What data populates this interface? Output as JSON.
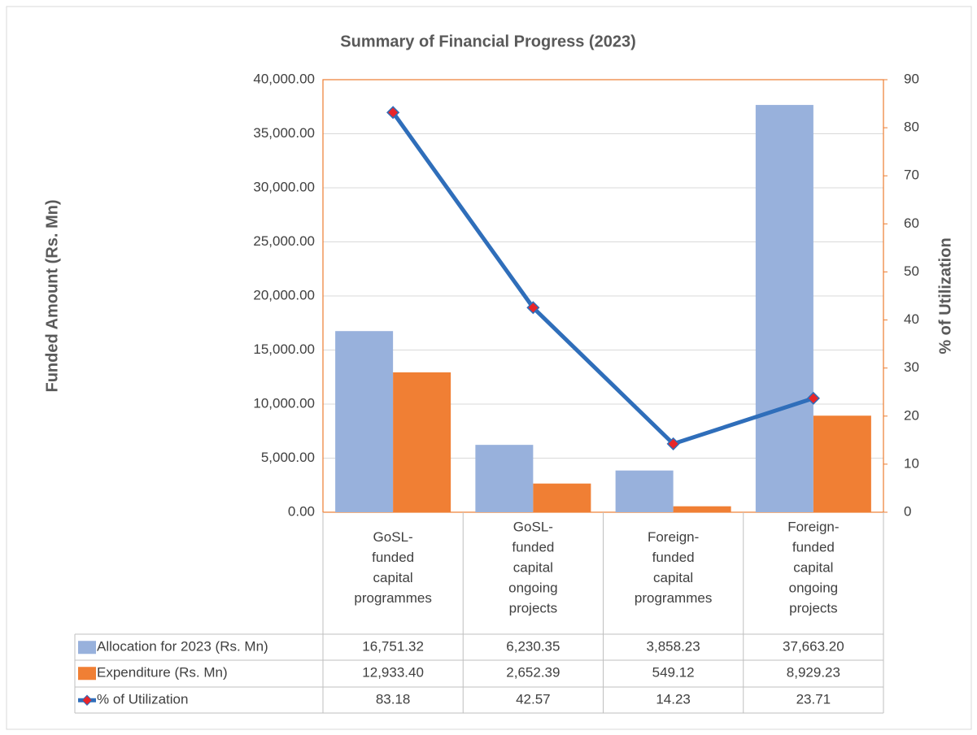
{
  "chart_data": {
    "type": "bar",
    "title": "Summary of Financial Progress (2023)",
    "ylabel": "Funded Amount  (Rs. Mn)",
    "y2label": "% of Utilization",
    "categories": [
      "GoSL-funded capital programmes",
      "GoSL-funded capital ongoing projects",
      "Foreign-funded capital programmes",
      "Foreign-funded capital ongoing projects"
    ],
    "series": [
      {
        "name": "Allocation for 2023 (Rs. Mn)",
        "color": "#98b1dc",
        "values": [
          16751.32,
          6230.35,
          3858.23,
          37663.2
        ],
        "value_labels": [
          "16,751.32",
          "6,230.35",
          "3,858.23",
          "37,663.20"
        ]
      },
      {
        "name": "Expenditure (Rs. Mn)",
        "color": "#f07f34",
        "values": [
          12933.4,
          2652.39,
          549.12,
          8929.23
        ],
        "value_labels": [
          "12,933.40",
          "2,652.39",
          "549.12",
          "8,929.23"
        ]
      },
      {
        "name": "% of Utilization",
        "type": "line",
        "axis": "y2",
        "color": "#2f6eba",
        "marker_color": "#e8262a",
        "values": [
          83.18,
          42.57,
          14.23,
          23.71
        ]
      }
    ],
    "ylim": [
      0,
      40000
    ],
    "yticks": [
      {
        "value": 0,
        "label": "0.00"
      },
      {
        "value": 5000,
        "label": "5,000.00"
      },
      {
        "value": 10000,
        "label": "10,000.00"
      },
      {
        "value": 15000,
        "label": "15,000.00"
      },
      {
        "value": 20000,
        "label": "20,000.00"
      },
      {
        "value": 25000,
        "label": "25,000.00"
      },
      {
        "value": 30000,
        "label": "30,000.00"
      },
      {
        "value": 35000,
        "label": "35,000.00"
      },
      {
        "value": 40000,
        "label": "40,000.00"
      }
    ],
    "y2lim": [
      0,
      90
    ],
    "y2ticks": [
      0,
      10,
      20,
      30,
      40,
      50,
      60,
      70,
      80,
      90
    ],
    "grid": true
  }
}
